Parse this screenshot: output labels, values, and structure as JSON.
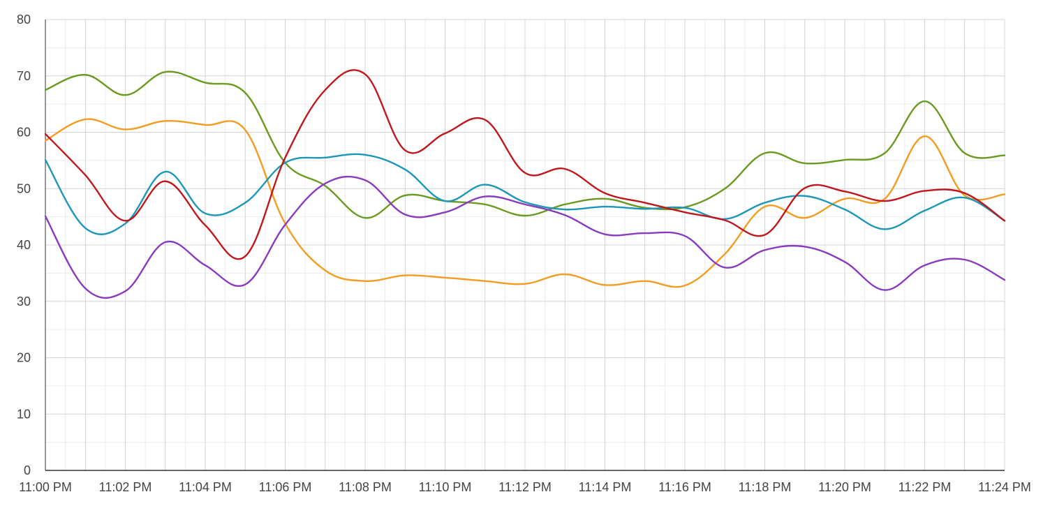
{
  "chart_data": {
    "type": "line",
    "title": "",
    "xlabel": "",
    "ylabel": "",
    "ylim": [
      0,
      80
    ],
    "y_ticks": [
      0,
      10,
      20,
      30,
      40,
      50,
      60,
      70,
      80
    ],
    "x_tick_labels": [
      "11:00 PM",
      "11:02 PM",
      "11:04 PM",
      "11:06 PM",
      "11:08 PM",
      "11:10 PM",
      "11:12 PM",
      "11:14 PM",
      "11:16 PM",
      "11:18 PM",
      "11:20 PM",
      "11:22 PM",
      "11:24 PM"
    ],
    "x_minutes_range": [
      0,
      24
    ],
    "grid": true,
    "legend": "none",
    "x": [
      "11:00 PM",
      "11:01 PM",
      "11:02 PM",
      "11:03 PM",
      "11:04 PM",
      "11:05 PM",
      "11:06 PM",
      "11:07 PM",
      "11:08 PM",
      "11:09 PM",
      "11:10 PM",
      "11:11 PM",
      "11:12 PM",
      "11:13 PM",
      "11:14 PM",
      "11:15 PM",
      "11:16 PM",
      "11:17 PM",
      "11:18 PM",
      "11:19 PM",
      "11:20 PM",
      "11:21 PM",
      "11:22 PM",
      "11:23 PM",
      "11:24 PM"
    ],
    "series": [
      {
        "color": "#6a9a1f",
        "values": [
          67.5,
          70.2,
          66.6,
          70.7,
          68.8,
          67.0,
          54.6,
          50.5,
          44.8,
          48.8,
          47.8,
          47.2,
          45.2,
          47.2,
          48.2,
          46.6,
          46.7,
          50.0,
          56.3,
          54.5,
          55.1,
          56.3,
          65.5,
          56.3,
          55.9
        ]
      },
      {
        "color": "#f39c1f",
        "values": [
          58.5,
          62.3,
          60.5,
          62.0,
          61.3,
          60.4,
          43.8,
          35.5,
          33.6,
          34.6,
          34.2,
          33.6,
          33.1,
          34.8,
          32.9,
          33.6,
          32.8,
          38.4,
          46.8,
          44.8,
          48.2,
          48.2,
          59.3,
          48.8,
          49.0
        ]
      },
      {
        "color": "#1b97b8",
        "values": [
          55.1,
          43.0,
          43.8,
          53.0,
          45.6,
          47.5,
          54.6,
          55.5,
          56.0,
          53.4,
          47.8,
          50.7,
          47.6,
          46.3,
          46.8,
          46.4,
          46.6,
          44.6,
          47.5,
          48.7,
          46.3,
          42.8,
          46.1,
          48.4,
          44.3
        ]
      },
      {
        "color": "#c0171d",
        "values": [
          59.7,
          52.4,
          44.3,
          51.3,
          43.5,
          38.0,
          55.5,
          67.5,
          70.3,
          56.8,
          59.8,
          62.2,
          52.8,
          53.5,
          49.2,
          47.5,
          45.8,
          44.4,
          41.8,
          50.1,
          49.5,
          47.8,
          49.6,
          49.2,
          44.3
        ]
      },
      {
        "color": "#8a3bbd",
        "values": [
          45.1,
          32.3,
          31.8,
          40.5,
          36.4,
          33.0,
          43.6,
          50.9,
          51.5,
          45.4,
          45.8,
          48.6,
          47.2,
          45.3,
          41.9,
          42.1,
          41.6,
          36.0,
          39.1,
          39.7,
          37.0,
          32.0,
          36.4,
          37.4,
          33.8
        ]
      }
    ]
  }
}
